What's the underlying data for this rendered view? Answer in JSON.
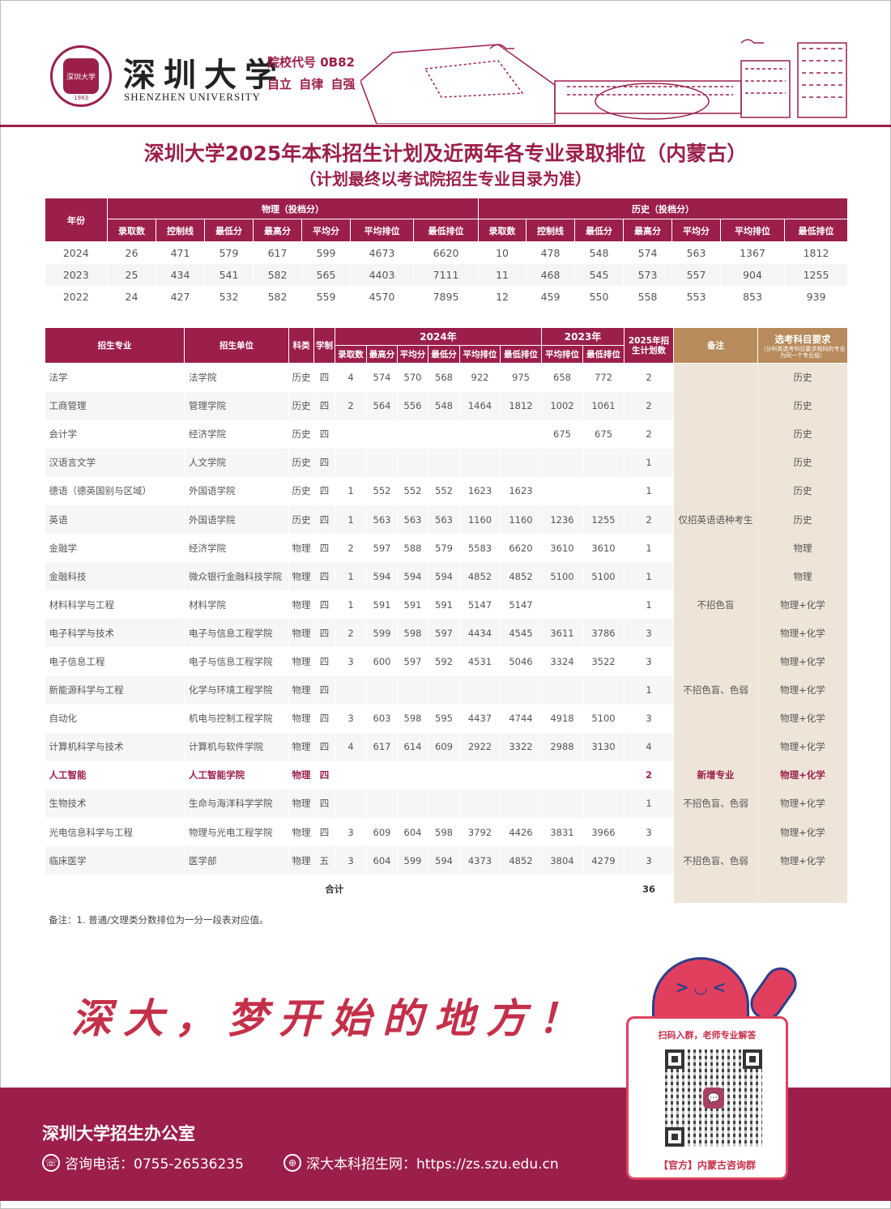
{
  "header": {
    "university_cn": "深圳大学",
    "university_en": "SHENZHEN UNIVERSITY",
    "seal_text": "深圳大学",
    "seal_year": "·1983·",
    "school_code": "院校代号 0B82",
    "motto": "自立 自律 自强"
  },
  "title": "深圳大学2025年本科招生计划及近两年各专业录取排位（内蒙古）",
  "subtitle": "（计划最终以考试院招生专业目录为准）",
  "colors": {
    "brand": "#9b1f4a",
    "tan_header": "#b88b5c",
    "tan_cell": "#eee4d8",
    "accent_red": "#e0405e"
  },
  "summary_table": {
    "year_header": "年份",
    "groups": [
      "物理（投档分）",
      "历史（投档分）"
    ],
    "columns": [
      "录取数",
      "控制线",
      "最低分",
      "最高分",
      "平均分",
      "平均排位",
      "最低排位"
    ],
    "rows": [
      [
        "2024",
        "26",
        "471",
        "579",
        "617",
        "599",
        "4673",
        "6620",
        "10",
        "478",
        "548",
        "574",
        "563",
        "1367",
        "1812"
      ],
      [
        "2023",
        "25",
        "434",
        "541",
        "582",
        "565",
        "4403",
        "7111",
        "11",
        "468",
        "545",
        "573",
        "557",
        "904",
        "1255"
      ],
      [
        "2022",
        "24",
        "427",
        "532",
        "582",
        "559",
        "4570",
        "7895",
        "12",
        "459",
        "550",
        "558",
        "553",
        "853",
        "939"
      ]
    ]
  },
  "main_table": {
    "headers": {
      "major": "招生专业",
      "unit": "招生单位",
      "category": "科类",
      "duration": "学制",
      "year2024": "2024年",
      "year2023": "2023年",
      "plan2025": "2025年招生计划数",
      "remarks": "备注",
      "subjects": "选考科目要求",
      "subjects_note": "（分科类选考科目要求相同的专业为同一个专业组）",
      "cols2024": [
        "录取数",
        "最高分",
        "平均分",
        "最低分",
        "平均排位",
        "最低排位"
      ],
      "cols2023": [
        "平均排位",
        "最低排位"
      ]
    },
    "rows": [
      [
        "法学",
        "法学院",
        "历史",
        "四",
        "4",
        "574",
        "570",
        "568",
        "922",
        "975",
        "658",
        "772",
        "2",
        "",
        "历史"
      ],
      [
        "工商管理",
        "管理学院",
        "历史",
        "四",
        "2",
        "564",
        "556",
        "548",
        "1464",
        "1812",
        "1002",
        "1061",
        "2",
        "",
        "历史"
      ],
      [
        "会计学",
        "经济学院",
        "历史",
        "四",
        "",
        "",
        "",
        "",
        "",
        "",
        "675",
        "675",
        "2",
        "",
        "历史"
      ],
      [
        "汉语言文学",
        "人文学院",
        "历史",
        "四",
        "",
        "",
        "",
        "",
        "",
        "",
        "",
        "",
        "1",
        "",
        "历史"
      ],
      [
        "德语（德英国别与区域）",
        "外国语学院",
        "历史",
        "四",
        "1",
        "552",
        "552",
        "552",
        "1623",
        "1623",
        "",
        "",
        "1",
        "",
        "历史"
      ],
      [
        "英语",
        "外国语学院",
        "历史",
        "四",
        "1",
        "563",
        "563",
        "563",
        "1160",
        "1160",
        "1236",
        "1255",
        "2",
        "仅招英语语种考生",
        "历史"
      ],
      [
        "金融学",
        "经济学院",
        "物理",
        "四",
        "2",
        "597",
        "588",
        "579",
        "5583",
        "6620",
        "3610",
        "3610",
        "1",
        "",
        "物理"
      ],
      [
        "金融科技",
        "微众银行金融科技学院",
        "物理",
        "四",
        "1",
        "594",
        "594",
        "594",
        "4852",
        "4852",
        "5100",
        "5100",
        "1",
        "",
        "物理"
      ],
      [
        "材料科学与工程",
        "材料学院",
        "物理",
        "四",
        "1",
        "591",
        "591",
        "591",
        "5147",
        "5147",
        "",
        "",
        "1",
        "不招色盲",
        "物理+化学"
      ],
      [
        "电子科学与技术",
        "电子与信息工程学院",
        "物理",
        "四",
        "2",
        "599",
        "598",
        "597",
        "4434",
        "4545",
        "3611",
        "3786",
        "3",
        "",
        "物理+化学"
      ],
      [
        "电子信息工程",
        "电子与信息工程学院",
        "物理",
        "四",
        "3",
        "600",
        "597",
        "592",
        "4531",
        "5046",
        "3324",
        "3522",
        "3",
        "",
        "物理+化学"
      ],
      [
        "新能源科学与工程",
        "化学与环境工程学院",
        "物理",
        "四",
        "",
        "",
        "",
        "",
        "",
        "",
        "",
        "",
        "1",
        "不招色盲、色弱",
        "物理+化学"
      ],
      [
        "自动化",
        "机电与控制工程学院",
        "物理",
        "四",
        "3",
        "603",
        "598",
        "595",
        "4437",
        "4744",
        "4918",
        "5100",
        "3",
        "",
        "物理+化学"
      ],
      [
        "计算机科学与技术",
        "计算机与软件学院",
        "物理",
        "四",
        "4",
        "617",
        "614",
        "609",
        "2922",
        "3322",
        "2988",
        "3130",
        "4",
        "",
        "物理+化学"
      ],
      [
        "人工智能",
        "人工智能学院",
        "物理",
        "四",
        "",
        "",
        "",
        "",
        "",
        "",
        "",
        "",
        "2",
        "新增专业",
        "物理+化学"
      ],
      [
        "生物技术",
        "生命与海洋科学学院",
        "物理",
        "四",
        "",
        "",
        "",
        "",
        "",
        "",
        "",
        "",
        "1",
        "不招色盲、色弱",
        "物理+化学"
      ],
      [
        "光电信息科学与工程",
        "物理与光电工程学院",
        "物理",
        "四",
        "3",
        "609",
        "604",
        "598",
        "3792",
        "4426",
        "3831",
        "3966",
        "3",
        "",
        "物理+化学"
      ],
      [
        "临床医学",
        "医学部",
        "物理",
        "五",
        "3",
        "604",
        "599",
        "594",
        "4373",
        "4852",
        "3804",
        "4279",
        "3",
        "不招色盲、色弱",
        "物理+化学"
      ]
    ],
    "highlight_row": "人工智能",
    "total_label": "合计",
    "total_value": "36"
  },
  "note": "备注：1. 普通/文理类分数排位为一分一段表对应值。",
  "slogan": "深大，梦开始的地方！",
  "qr_card": {
    "top_text": "扫码入群，老师专业解答",
    "bottom_text": "【官方】内蒙古咨询群",
    "icon": "wechat-icon"
  },
  "footer": {
    "office": "深圳大学招生办公室",
    "phone_label": "咨询电话：0755-26536235",
    "web_label": "深大本科招生网：https://zs.szu.edu.cn",
    "phone_icon": "phone-icon",
    "web_icon": "globe-icon"
  }
}
